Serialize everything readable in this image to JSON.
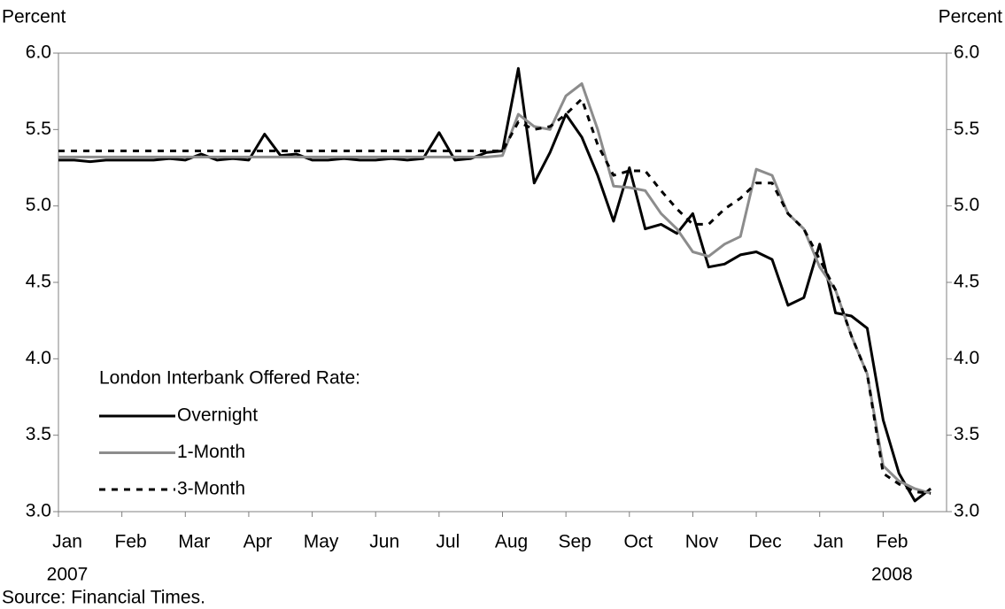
{
  "chart_data": {
    "type": "line",
    "y_label": "Percent",
    "y2_label": "Percent",
    "source": "Source: Financial Times.",
    "legend_title": "London Interbank Offered Rate:",
    "xlim": [
      0,
      14
    ],
    "xticks": [
      {
        "value": 0,
        "label": "Jan"
      },
      {
        "value": 1,
        "label": "Feb"
      },
      {
        "value": 2,
        "label": "Mar"
      },
      {
        "value": 3,
        "label": "Apr"
      },
      {
        "value": 4,
        "label": "May"
      },
      {
        "value": 5,
        "label": "Jun"
      },
      {
        "value": 6,
        "label": "Jul"
      },
      {
        "value": 7,
        "label": "Aug"
      },
      {
        "value": 8,
        "label": "Sep"
      },
      {
        "value": 9,
        "label": "Oct"
      },
      {
        "value": 10,
        "label": "Nov"
      },
      {
        "value": 11,
        "label": "Dec"
      },
      {
        "value": 12,
        "label": "Jan"
      },
      {
        "value": 13,
        "label": "Feb"
      }
    ],
    "year_labels": [
      {
        "value": 0,
        "label": "2007"
      },
      {
        "value": 13,
        "label": "2008"
      }
    ],
    "ylim": [
      3,
      6
    ],
    "yticks": [
      {
        "value": 3,
        "label": "3.0"
      },
      3.5,
      {
        "value": 4,
        "label": "4.0"
      },
      4.5,
      {
        "value": 5,
        "label": "5.0"
      },
      5.5,
      {
        "value": 6,
        "label": "6.0"
      }
    ],
    "y2lim": [
      3,
      6
    ],
    "y2ticks": [
      {
        "value": 3,
        "label": "3.0"
      },
      3.5,
      {
        "value": 4,
        "label": "4.0"
      },
      4.5,
      {
        "value": 5,
        "label": "5.0"
      },
      5.5,
      {
        "value": 6,
        "label": "6.0"
      }
    ],
    "x": [
      0,
      0.25,
      0.5,
      0.75,
      1,
      1.25,
      1.5,
      1.75,
      2,
      2.25,
      2.5,
      2.75,
      3,
      3.25,
      3.5,
      3.75,
      4,
      4.25,
      4.5,
      4.75,
      5,
      5.25,
      5.5,
      5.75,
      6,
      6.25,
      6.5,
      6.75,
      7,
      7.25,
      7.5,
      7.75,
      8,
      8.25,
      8.5,
      8.75,
      9,
      9.25,
      9.5,
      9.75,
      10,
      10.25,
      10.5,
      10.75,
      11,
      11.25,
      11.5,
      11.75,
      12,
      12.25,
      12.5,
      12.75,
      13,
      13.25,
      13.5,
      13.75
    ],
    "series": [
      {
        "name": "Overnight",
        "color": "#000000",
        "dashed": false,
        "values": [
          5.3,
          5.3,
          5.29,
          5.3,
          5.3,
          5.3,
          5.3,
          5.31,
          5.3,
          5.34,
          5.3,
          5.31,
          5.3,
          5.47,
          5.33,
          5.34,
          5.3,
          5.3,
          5.31,
          5.3,
          5.3,
          5.31,
          5.3,
          5.31,
          5.48,
          5.3,
          5.31,
          5.35,
          5.36,
          5.9,
          5.15,
          5.35,
          5.6,
          5.45,
          5.2,
          4.9,
          5.25,
          4.85,
          4.88,
          4.82,
          4.95,
          4.6,
          4.62,
          4.68,
          4.7,
          4.65,
          4.35,
          4.4,
          4.75,
          4.3,
          4.28,
          4.2,
          3.6,
          3.25,
          3.07,
          3.15
        ]
      },
      {
        "name": "1-Month",
        "color": "#8c8c8c",
        "dashed": false,
        "values": [
          5.32,
          5.32,
          5.32,
          5.32,
          5.32,
          5.32,
          5.32,
          5.32,
          5.32,
          5.32,
          5.32,
          5.32,
          5.32,
          5.32,
          5.32,
          5.32,
          5.32,
          5.32,
          5.32,
          5.32,
          5.32,
          5.32,
          5.32,
          5.32,
          5.32,
          5.32,
          5.32,
          5.32,
          5.33,
          5.6,
          5.52,
          5.5,
          5.72,
          5.8,
          5.5,
          5.13,
          5.12,
          5.1,
          4.95,
          4.85,
          4.7,
          4.67,
          4.75,
          4.8,
          5.24,
          5.2,
          4.95,
          4.85,
          4.6,
          4.45,
          4.15,
          3.9,
          3.3,
          3.2,
          3.15,
          3.12
        ]
      },
      {
        "name": "3-Month",
        "color": "#000000",
        "dashed": true,
        "values": [
          5.36,
          5.36,
          5.36,
          5.36,
          5.36,
          5.36,
          5.36,
          5.36,
          5.36,
          5.36,
          5.36,
          5.36,
          5.36,
          5.36,
          5.36,
          5.36,
          5.36,
          5.36,
          5.36,
          5.36,
          5.36,
          5.36,
          5.36,
          5.36,
          5.36,
          5.36,
          5.36,
          5.36,
          5.36,
          5.55,
          5.5,
          5.52,
          5.6,
          5.7,
          5.4,
          5.2,
          5.23,
          5.23,
          5.1,
          4.98,
          4.88,
          4.88,
          4.98,
          5.05,
          5.15,
          5.15,
          4.95,
          4.85,
          4.65,
          4.45,
          4.15,
          3.9,
          3.25,
          3.18,
          3.13,
          3.12
        ]
      }
    ]
  }
}
